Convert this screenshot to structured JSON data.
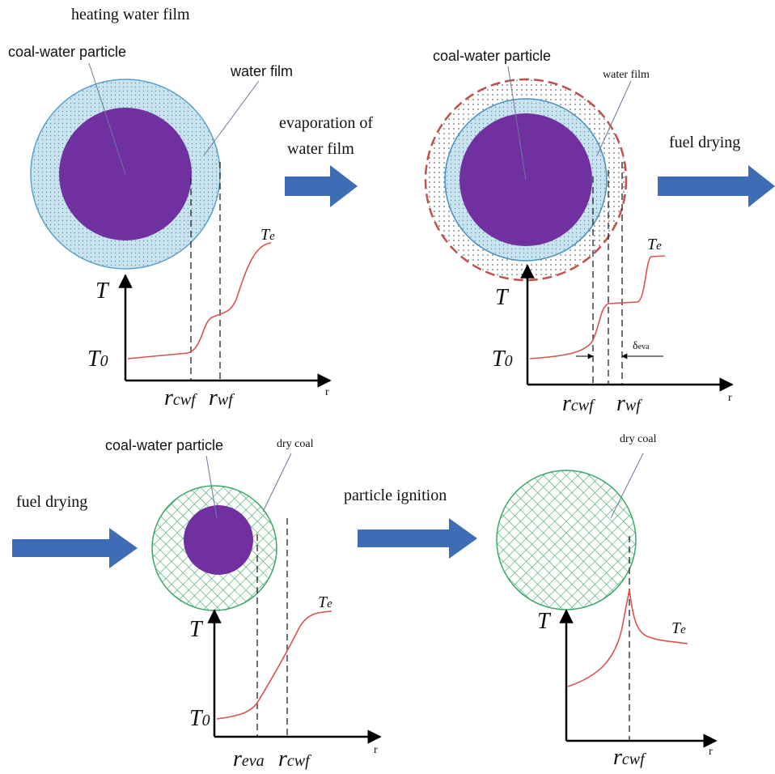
{
  "panels": [
    {
      "title": "heating water film",
      "labels": [
        "coal-water particle",
        "water film"
      ],
      "axis": {
        "y": "T",
        "x": "r",
        "start": {
          "base": "T",
          "sub": "0"
        },
        "end": {
          "base": "T",
          "sub": "e"
        },
        "ticks": [
          {
            "base": "r",
            "sub": "cwf"
          },
          {
            "base": "r",
            "sub": "wf"
          }
        ]
      }
    },
    {
      "labels": [
        "coal-water particle",
        "water film"
      ],
      "axis": {
        "y": "T",
        "x": "r",
        "start": {
          "base": "T",
          "sub": "0"
        },
        "end": {
          "base": "T",
          "sub": "e"
        },
        "ticks": [
          {
            "base": "r",
            "sub": "cwf"
          },
          {
            "base": "r",
            "sub": "wf"
          }
        ],
        "delta": {
          "base": "δ",
          "sub": "eva"
        }
      }
    },
    {
      "labels": [
        "coal-water particle",
        "dry coal"
      ],
      "axis": {
        "y": "T",
        "x": "r",
        "start": {
          "base": "T",
          "sub": "0"
        },
        "end": {
          "base": "T",
          "sub": "e"
        },
        "ticks": [
          {
            "base": "r",
            "sub": "eva"
          },
          {
            "base": "r",
            "sub": "cwf"
          }
        ]
      }
    },
    {
      "labels": [
        "dry coal"
      ],
      "axis": {
        "y": "T",
        "x": "r",
        "end": {
          "base": "T",
          "sub": "e"
        },
        "ticks": [
          {
            "base": "r",
            "sub": "cwf"
          }
        ]
      }
    }
  ],
  "arrows": [
    [
      "evaporation of",
      "water film"
    ],
    [
      "fuel drying"
    ],
    [
      "fuel drying"
    ],
    [
      "particle ignition"
    ]
  ]
}
